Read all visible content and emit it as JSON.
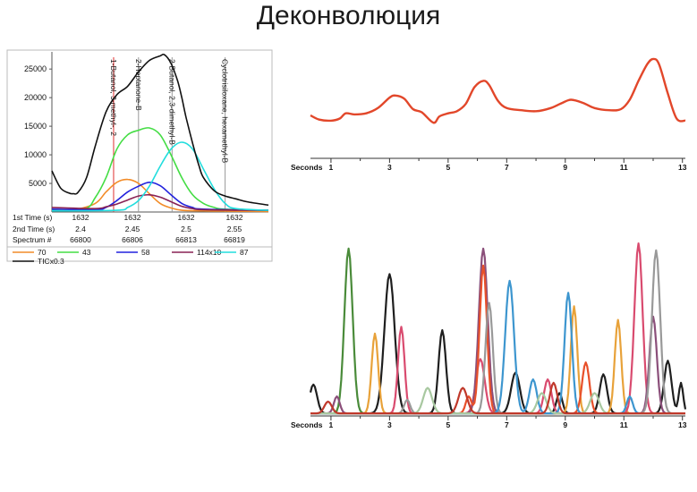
{
  "slide": {
    "title": "Деконволюция"
  },
  "chart_data": [
    {
      "type": "line",
      "title": "",
      "ylim": [
        0,
        28000
      ],
      "yticks": [
        5000,
        10000,
        15000,
        20000,
        25000
      ],
      "xlim": [
        0,
        1
      ],
      "table": {
        "row_labels": [
          "1st Time (s)",
          "2nd Time (s)",
          "Spectrum #"
        ],
        "columns": [
          [
            "1632",
            "2.4",
            "66800"
          ],
          [
            "1632",
            "2.45",
            "66806"
          ],
          [
            "1632",
            "2.5",
            "66813"
          ],
          [
            "1632",
            "2.55",
            "66819"
          ]
        ]
      },
      "annotations": [
        "1-Butanol, 3-methyl-, 2",
        "2-Heptanone-B",
        "2-Butanol, 2,3-dimethyl-B",
        "Cyclotrisiloxane, hexamethyl-B"
      ],
      "series": [
        {
          "name": "70",
          "color": "#f28c28",
          "x": [
            0,
            0.1,
            0.2,
            0.25,
            0.3,
            0.35,
            0.4,
            0.45,
            0.5,
            0.55,
            0.6,
            0.7,
            0.8,
            1.0
          ],
          "y": [
            300,
            400,
            1500,
            3500,
            5200,
            5700,
            5000,
            3200,
            1500,
            700,
            300,
            200,
            150,
            100
          ]
        },
        {
          "name": "43",
          "color": "#44dd44",
          "x": [
            0,
            0.15,
            0.2,
            0.25,
            0.3,
            0.35,
            0.4,
            0.45,
            0.5,
            0.55,
            0.6,
            0.65,
            0.7,
            0.75,
            0.8,
            1.0
          ],
          "y": [
            300,
            500,
            2500,
            6000,
            11000,
            13500,
            14300,
            14700,
            13500,
            10000,
            6000,
            3000,
            1500,
            800,
            500,
            300
          ]
        },
        {
          "name": "58",
          "color": "#2222dd",
          "x": [
            0,
            0.2,
            0.25,
            0.3,
            0.35,
            0.4,
            0.45,
            0.5,
            0.55,
            0.6,
            0.65,
            0.7,
            1.0
          ],
          "y": [
            500,
            400,
            800,
            2000,
            3500,
            4500,
            5200,
            4600,
            3000,
            1500,
            800,
            500,
            300
          ]
        },
        {
          "name": "114x10",
          "color": "#882255",
          "x": [
            0,
            0.2,
            0.25,
            0.3,
            0.35,
            0.4,
            0.45,
            0.5,
            0.55,
            0.6,
            0.65,
            0.7,
            1.0
          ],
          "y": [
            800,
            600,
            900,
            1400,
            2100,
            2800,
            3000,
            2600,
            1800,
            1000,
            600,
            400,
            300
          ]
        },
        {
          "name": "87",
          "color": "#22dddd",
          "x": [
            0,
            0.3,
            0.35,
            0.4,
            0.45,
            0.5,
            0.55,
            0.6,
            0.65,
            0.7,
            0.75,
            0.8,
            0.85,
            1.0
          ],
          "y": [
            200,
            300,
            800,
            2000,
            4500,
            8000,
            11000,
            12200,
            11000,
            7500,
            4000,
            1500,
            600,
            300
          ]
        },
        {
          "name": "TICx0.3",
          "color": "#111111",
          "x": [
            0,
            0.04,
            0.08,
            0.1,
            0.12,
            0.16,
            0.2,
            0.25,
            0.3,
            0.35,
            0.4,
            0.45,
            0.5,
            0.52,
            0.55,
            0.58,
            0.6,
            0.62,
            0.65,
            0.68,
            0.7,
            0.75,
            0.8,
            0.85,
            0.9,
            1.0
          ],
          "y": [
            7200,
            4200,
            3300,
            3200,
            3400,
            6000,
            11500,
            17500,
            20500,
            22000,
            24500,
            26500,
            27300,
            27500,
            26000,
            23000,
            20000,
            16500,
            12000,
            8000,
            6000,
            3700,
            2800,
            2300,
            1800,
            1200
          ]
        }
      ]
    },
    {
      "type": "line",
      "xlabel": "Seconds",
      "xlim": [
        0.3,
        13.1
      ],
      "ylim": [
        0,
        1
      ],
      "xticks": [
        1,
        3,
        5,
        7,
        9,
        11,
        13
      ],
      "series": [
        {
          "color": "#e2472a",
          "x": [
            0.3,
            0.6,
            1.0,
            1.3,
            1.5,
            1.8,
            2.2,
            2.6,
            3.0,
            3.2,
            3.5,
            3.8,
            4.1,
            4.5,
            4.7,
            5.0,
            5.3,
            5.6,
            5.9,
            6.2,
            6.4,
            6.7,
            7.0,
            7.5,
            8.0,
            8.5,
            8.9,
            9.2,
            9.6,
            10.0,
            10.5,
            10.9,
            11.2,
            11.5,
            11.8,
            12.0,
            12.2,
            12.5,
            12.8,
            13.1
          ],
          "y": [
            0.41,
            0.37,
            0.36,
            0.38,
            0.43,
            0.42,
            0.43,
            0.48,
            0.58,
            0.6,
            0.57,
            0.47,
            0.44,
            0.34,
            0.4,
            0.43,
            0.45,
            0.52,
            0.68,
            0.74,
            0.7,
            0.55,
            0.48,
            0.46,
            0.45,
            0.48,
            0.53,
            0.56,
            0.53,
            0.48,
            0.46,
            0.47,
            0.56,
            0.74,
            0.9,
            0.95,
            0.9,
            0.62,
            0.38,
            0.36
          ]
        }
      ]
    },
    {
      "type": "line",
      "xlabel": "Seconds",
      "xlim": [
        0.3,
        13.1
      ],
      "ylim": [
        0,
        1
      ],
      "xticks": [
        1,
        3,
        5,
        7,
        9,
        11,
        13
      ],
      "series": [
        {
          "color": "#4a8b3a",
          "peaks": [
            [
              1.6,
              0.97,
              0.28
            ]
          ]
        },
        {
          "color": "#1f1f1f",
          "peaks": [
            [
              0.4,
              0.17,
              0.25
            ],
            [
              3.0,
              0.82,
              0.35
            ],
            [
              4.8,
              0.49,
              0.25
            ],
            [
              7.3,
              0.24,
              0.3
            ],
            [
              8.8,
              0.12,
              0.2
            ],
            [
              10.3,
              0.23,
              0.25
            ],
            [
              12.5,
              0.31,
              0.25
            ],
            [
              12.95,
              0.18,
              0.15
            ]
          ]
        },
        {
          "color": "#e8a23a",
          "peaks": [
            [
              2.5,
              0.47,
              0.22
            ],
            [
              9.3,
              0.63,
              0.22
            ],
            [
              10.8,
              0.55,
              0.22
            ]
          ]
        },
        {
          "color": "#d94b6f",
          "peaks": [
            [
              3.4,
              0.51,
              0.22
            ],
            [
              6.1,
              0.32,
              0.3
            ],
            [
              11.5,
              1.0,
              0.28
            ],
            [
              8.4,
              0.2,
              0.25
            ]
          ]
        },
        {
          "color": "#8b4f7a",
          "peaks": [
            [
              6.2,
              0.97,
              0.3
            ],
            [
              12.0,
              0.57,
              0.25
            ],
            [
              1.2,
              0.1,
              0.2
            ]
          ]
        },
        {
          "color": "#e8502a",
          "peaks": [
            [
              6.2,
              0.87,
              0.25
            ],
            [
              9.7,
              0.3,
              0.25
            ],
            [
              5.7,
              0.1,
              0.2
            ]
          ]
        },
        {
          "color": "#999999",
          "peaks": [
            [
              6.4,
              0.65,
              0.25
            ],
            [
              12.1,
              0.96,
              0.28
            ],
            [
              3.6,
              0.08,
              0.2
            ]
          ]
        },
        {
          "color": "#3d96cf",
          "peaks": [
            [
              7.1,
              0.78,
              0.3
            ],
            [
              9.1,
              0.71,
              0.25
            ],
            [
              7.9,
              0.2,
              0.25
            ],
            [
              11.2,
              0.1,
              0.2
            ]
          ]
        },
        {
          "color": "#a8c8a0",
          "peaks": [
            [
              4.3,
              0.15,
              0.3
            ],
            [
              8.2,
              0.12,
              0.3
            ],
            [
              10.0,
              0.12,
              0.3
            ]
          ]
        },
        {
          "color": "#c0392b",
          "peaks": [
            [
              0.9,
              0.07,
              0.25
            ],
            [
              5.5,
              0.15,
              0.3
            ],
            [
              8.6,
              0.18,
              0.25
            ]
          ]
        }
      ]
    }
  ]
}
